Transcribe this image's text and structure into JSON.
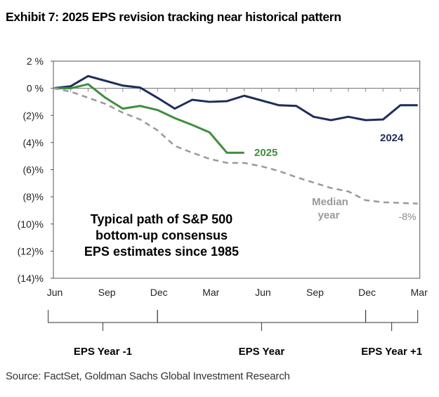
{
  "title": "Exhibit 7: 2025 EPS revision tracking near historical pattern",
  "source": "Source: FactSet, Goldman Sachs Global Investment Research",
  "chart_data": {
    "type": "line",
    "ylim": [
      -14,
      2
    ],
    "yticks": [
      2,
      0,
      -2,
      -4,
      -6,
      -8,
      -10,
      -12,
      -14
    ],
    "ytick_labels": [
      "2 %",
      "0 %",
      "(2)%",
      "(4)%",
      "(6)%",
      "(8)%",
      "(10)%",
      "(12)%",
      "(14)%"
    ],
    "x_months": 22,
    "xtick_labels": [
      {
        "month": 0,
        "label": "Jun"
      },
      {
        "month": 3,
        "label": "Sep"
      },
      {
        "month": 6,
        "label": "Dec"
      },
      {
        "month": 9,
        "label": "Mar"
      },
      {
        "month": 12,
        "label": "Jun"
      },
      {
        "month": 15,
        "label": "Sep"
      },
      {
        "month": 18,
        "label": "Dec"
      },
      {
        "month": 21,
        "label": "Mar"
      }
    ],
    "series": [
      {
        "name": "2024",
        "color": "#1f2d5c",
        "dashed": false,
        "values": [
          0,
          0.15,
          0.9,
          0.55,
          0.2,
          0.05,
          -0.7,
          -1.5,
          -0.85,
          -1.0,
          -0.95,
          -0.55,
          -0.9,
          -1.25,
          -1.3,
          -2.1,
          -2.35,
          -2.1,
          -2.35,
          -2.3,
          -1.25,
          -1.25
        ]
      },
      {
        "name": "2025",
        "color": "#3f8f3f",
        "dashed": false,
        "values": [
          0,
          0,
          0.3,
          -0.7,
          -1.5,
          -1.3,
          -1.6,
          -2.2,
          -2.7,
          -3.25,
          -4.75,
          -4.75
        ]
      },
      {
        "name": "Median year",
        "color": "#999999",
        "dashed": true,
        "values": [
          0,
          -0.25,
          -0.7,
          -1.15,
          -1.8,
          -2.3,
          -3.1,
          -4.25,
          -4.75,
          -5.2,
          -5.5,
          -5.5,
          -5.75,
          -6.1,
          -6.55,
          -6.95,
          -7.35,
          -7.6,
          -8.25,
          -8.4,
          -8.45,
          -8.5
        ]
      }
    ],
    "annotations": {
      "label_2024": "2024",
      "label_2025": "2025",
      "median_line1": "Median",
      "median_line2": "year",
      "end_value": "-8%",
      "note": [
        "Typical path of S&P 500",
        "bottom-up consensus",
        "EPS estimates since 1985"
      ]
    },
    "eps_years": [
      {
        "label": "EPS Year -1",
        "from": -0.3,
        "to": 6
      },
      {
        "label": "EPS Year",
        "from": 6,
        "to": 18
      },
      {
        "label": "EPS Year +1",
        "from": 18,
        "to": 21
      }
    ]
  }
}
